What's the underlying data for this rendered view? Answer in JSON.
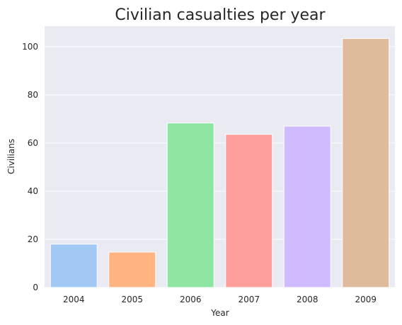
{
  "chart_data": {
    "type": "bar",
    "title": "Civilian casualties per year",
    "xlabel": "Year",
    "ylabel": "Civilians",
    "categories": [
      "2004",
      "2005",
      "2006",
      "2007",
      "2008",
      "2009"
    ],
    "values": [
      18,
      14.7,
      68.3,
      63.6,
      67,
      103.4
    ],
    "colors": [
      "#a1c9f4",
      "#ffb482",
      "#8de5a1",
      "#ff9f9b",
      "#d0bbff",
      "#debb9b"
    ],
    "ylim": [
      0,
      108.5
    ],
    "yticks": [
      0,
      20,
      40,
      60,
      80,
      100
    ],
    "grid": true,
    "plot_background": "#eaeaf2"
  }
}
